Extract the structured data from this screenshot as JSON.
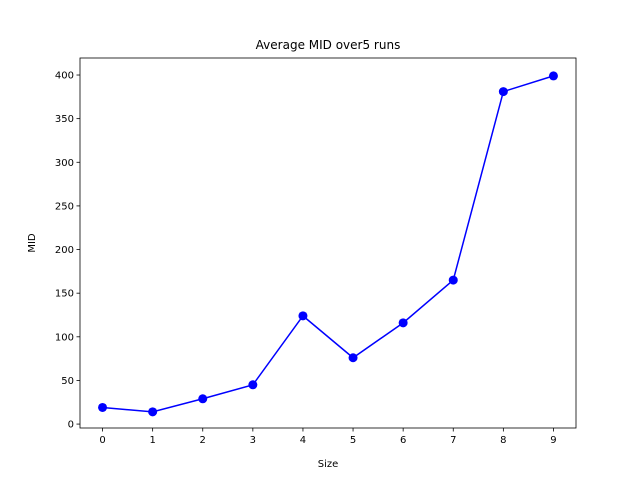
{
  "chart_data": {
    "type": "line",
    "title": "Average MID over5 runs",
    "xlabel": "Size",
    "ylabel": "MID",
    "x": [
      0,
      1,
      2,
      3,
      4,
      5,
      6,
      7,
      8,
      9
    ],
    "series": [
      {
        "values": [
          19,
          14,
          29,
          45,
          124,
          76,
          116,
          165,
          381,
          399
        ]
      }
    ],
    "xlim": [
      -0.45,
      9.45
    ],
    "ylim": [
      -4.5,
      419.5
    ],
    "xticks": [
      0,
      1,
      2,
      3,
      4,
      5,
      6,
      7,
      8,
      9
    ],
    "yticks": [
      0,
      50,
      100,
      150,
      200,
      250,
      300,
      350,
      400
    ],
    "grid": false,
    "line_color": "#0000ff",
    "marker": "circle"
  }
}
